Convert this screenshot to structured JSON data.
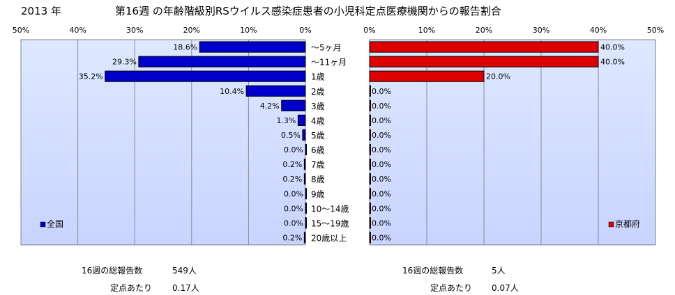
{
  "year_label": "2013 年",
  "title": "第16週 の年齢階級別RSウイルス感染症患者の小児科定点医療機関からの報告割合",
  "colors": {
    "left_bar": "#0000cc",
    "right_bar": "#dd0000",
    "plot_bg_top": "#dde8ff",
    "plot_bg_bottom": "#c8d4ff"
  },
  "chart_data": [
    {
      "type": "bar",
      "orientation": "horizontal",
      "direction": "right-to-left",
      "series": [
        {
          "name": "全国",
          "values": [
            18.6,
            29.3,
            35.2,
            10.4,
            4.2,
            1.3,
            0.5,
            0.0,
            0.2,
            0.2,
            0.0,
            0.0,
            0.0,
            0.2
          ]
        }
      ],
      "categories": [
        "～5ヶ月",
        "～11ヶ月",
        "1歳",
        "2歳",
        "3歳",
        "4歳",
        "5歳",
        "6歳",
        "7歳",
        "8歳",
        "9歳",
        "10～14歳",
        "15～19歳",
        "20歳以上"
      ],
      "value_labels": [
        "18.6%",
        "29.3%",
        "35.2%",
        "10.4%",
        "4.2%",
        "1.3%",
        "0.5%",
        "0.0%",
        "0.2%",
        "0.2%",
        "0.0%",
        "0.0%",
        "0.0%",
        "0.2%"
      ],
      "xlim": [
        0,
        50
      ],
      "ticks": [
        "50%",
        "40%",
        "30%",
        "20%",
        "10%",
        "0%"
      ],
      "legend": "全国",
      "legend_position": "bottom-left",
      "grid": true
    },
    {
      "type": "bar",
      "orientation": "horizontal",
      "direction": "left-to-right",
      "series": [
        {
          "name": "京都府",
          "values": [
            40.0,
            40.0,
            20.0,
            0.0,
            0.0,
            0.0,
            0.0,
            0.0,
            0.0,
            0.0,
            0.0,
            0.0,
            0.0,
            0.0
          ]
        }
      ],
      "categories": [
        "～5ヶ月",
        "～11ヶ月",
        "1歳",
        "2歳",
        "3歳",
        "4歳",
        "5歳",
        "6歳",
        "7歳",
        "8歳",
        "9歳",
        "10～14歳",
        "15～19歳",
        "20歳以上"
      ],
      "value_labels": [
        "40.0%",
        "40.0%",
        "20.0%",
        "0.0%",
        "0.0%",
        "0.0%",
        "0.0%",
        "0.0%",
        "0.0%",
        "0.0%",
        "0.0%",
        "0.0%",
        "0.0%",
        "0.0%"
      ],
      "xlim": [
        0,
        50
      ],
      "ticks": [
        "0%",
        "10%",
        "20%",
        "30%",
        "40%",
        "50%"
      ],
      "legend": "京都府",
      "legend_position": "bottom-right",
      "grid": true
    }
  ],
  "footer": {
    "left": {
      "total_label": "16週の総報告数",
      "total_value": "549人",
      "per_label": "定点あたり",
      "per_value": "0.17人"
    },
    "right": {
      "total_label": "16週の総報告数",
      "total_value": "5人",
      "per_label": "定点あたり",
      "per_value": "0.07人"
    }
  }
}
